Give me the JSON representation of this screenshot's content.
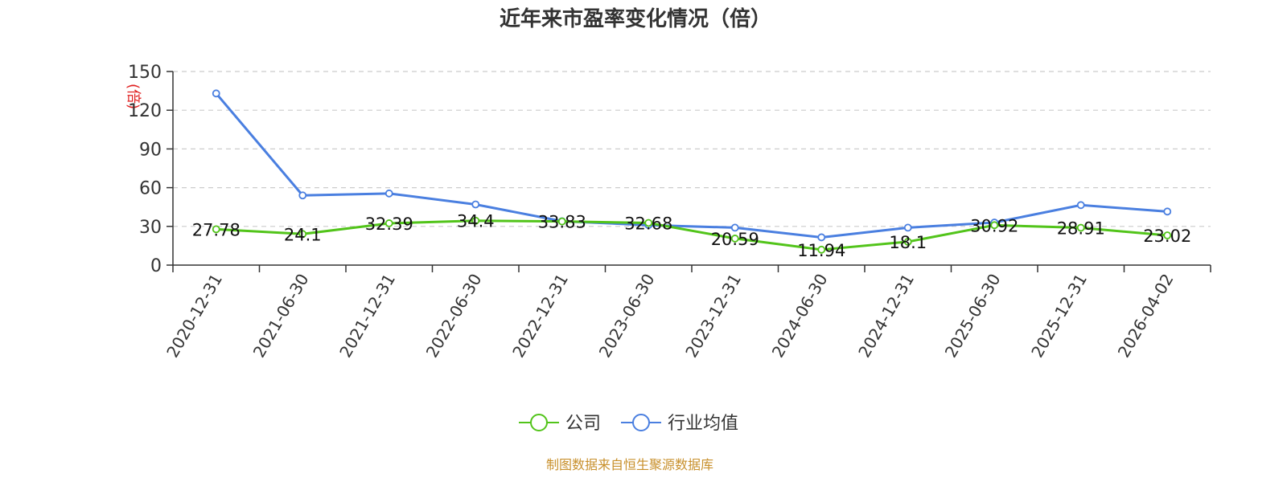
{
  "chart_data": {
    "type": "line",
    "title": "近年来市盈率变化情况（倍）",
    "unit_label": "(倍)",
    "categories": [
      "2020-12-31",
      "2021-06-30",
      "2021-12-31",
      "2022-06-30",
      "2022-12-31",
      "2023-06-30",
      "2023-12-31",
      "2024-06-30",
      "2024-12-31",
      "2025-06-30",
      "2025-12-31",
      "2026-04-02"
    ],
    "ylim": [
      0,
      150
    ],
    "yticks": [
      0,
      30,
      60,
      90,
      120,
      150
    ],
    "grid": true,
    "legend_position": "bottom",
    "series": [
      {
        "name": "公司",
        "color": "#52c41a",
        "values": [
          27.78,
          24.1,
          32.39,
          34.4,
          33.83,
          32.68,
          20.59,
          11.94,
          18.1,
          30.92,
          28.91,
          23.02
        ],
        "labels": [
          "27.78",
          "24.1",
          "32.39",
          "34.4",
          "33.83",
          "32.68",
          "20.59",
          "11.94",
          "18.1",
          "30.92",
          "28.91",
          "23.02"
        ]
      },
      {
        "name": "行业均值",
        "color": "#4a7fe0",
        "values": [
          133,
          54,
          55.5,
          47,
          34,
          31,
          29,
          21.5,
          29,
          33,
          46.5,
          41.5
        ]
      }
    ],
    "source_note": "制图数据来自恒生聚源数据库",
    "source_color": "#c8902c",
    "unit_color": "#e02020"
  }
}
